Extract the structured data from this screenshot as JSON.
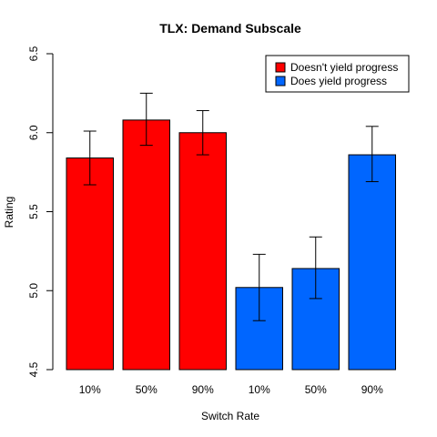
{
  "chart_data": {
    "type": "bar",
    "title": "TLX: Demand Subscale",
    "xlabel": "Switch Rate",
    "ylabel": "Rating",
    "ylim": [
      4.5,
      6.5
    ],
    "yticks": [
      "4.5",
      "5.0",
      "5.5",
      "6.0",
      "6.5"
    ],
    "categories": [
      "10%",
      "50%",
      "90%",
      "10%",
      "50%",
      "90%"
    ],
    "values": [
      5.84,
      6.08,
      6.0,
      5.02,
      5.14,
      5.86
    ],
    "error_low": [
      5.67,
      5.92,
      5.86,
      4.81,
      4.95,
      5.69
    ],
    "error_high": [
      6.01,
      6.25,
      6.14,
      5.23,
      5.34,
      6.04
    ],
    "bar_series_index": [
      0,
      0,
      0,
      1,
      1,
      1
    ],
    "series": [
      {
        "name": "Doesn't yield progress",
        "color": "#ff0000"
      },
      {
        "name": "Does yield progress",
        "color": "#0066ff"
      }
    ],
    "legend_position": "top-right",
    "grid": false
  }
}
